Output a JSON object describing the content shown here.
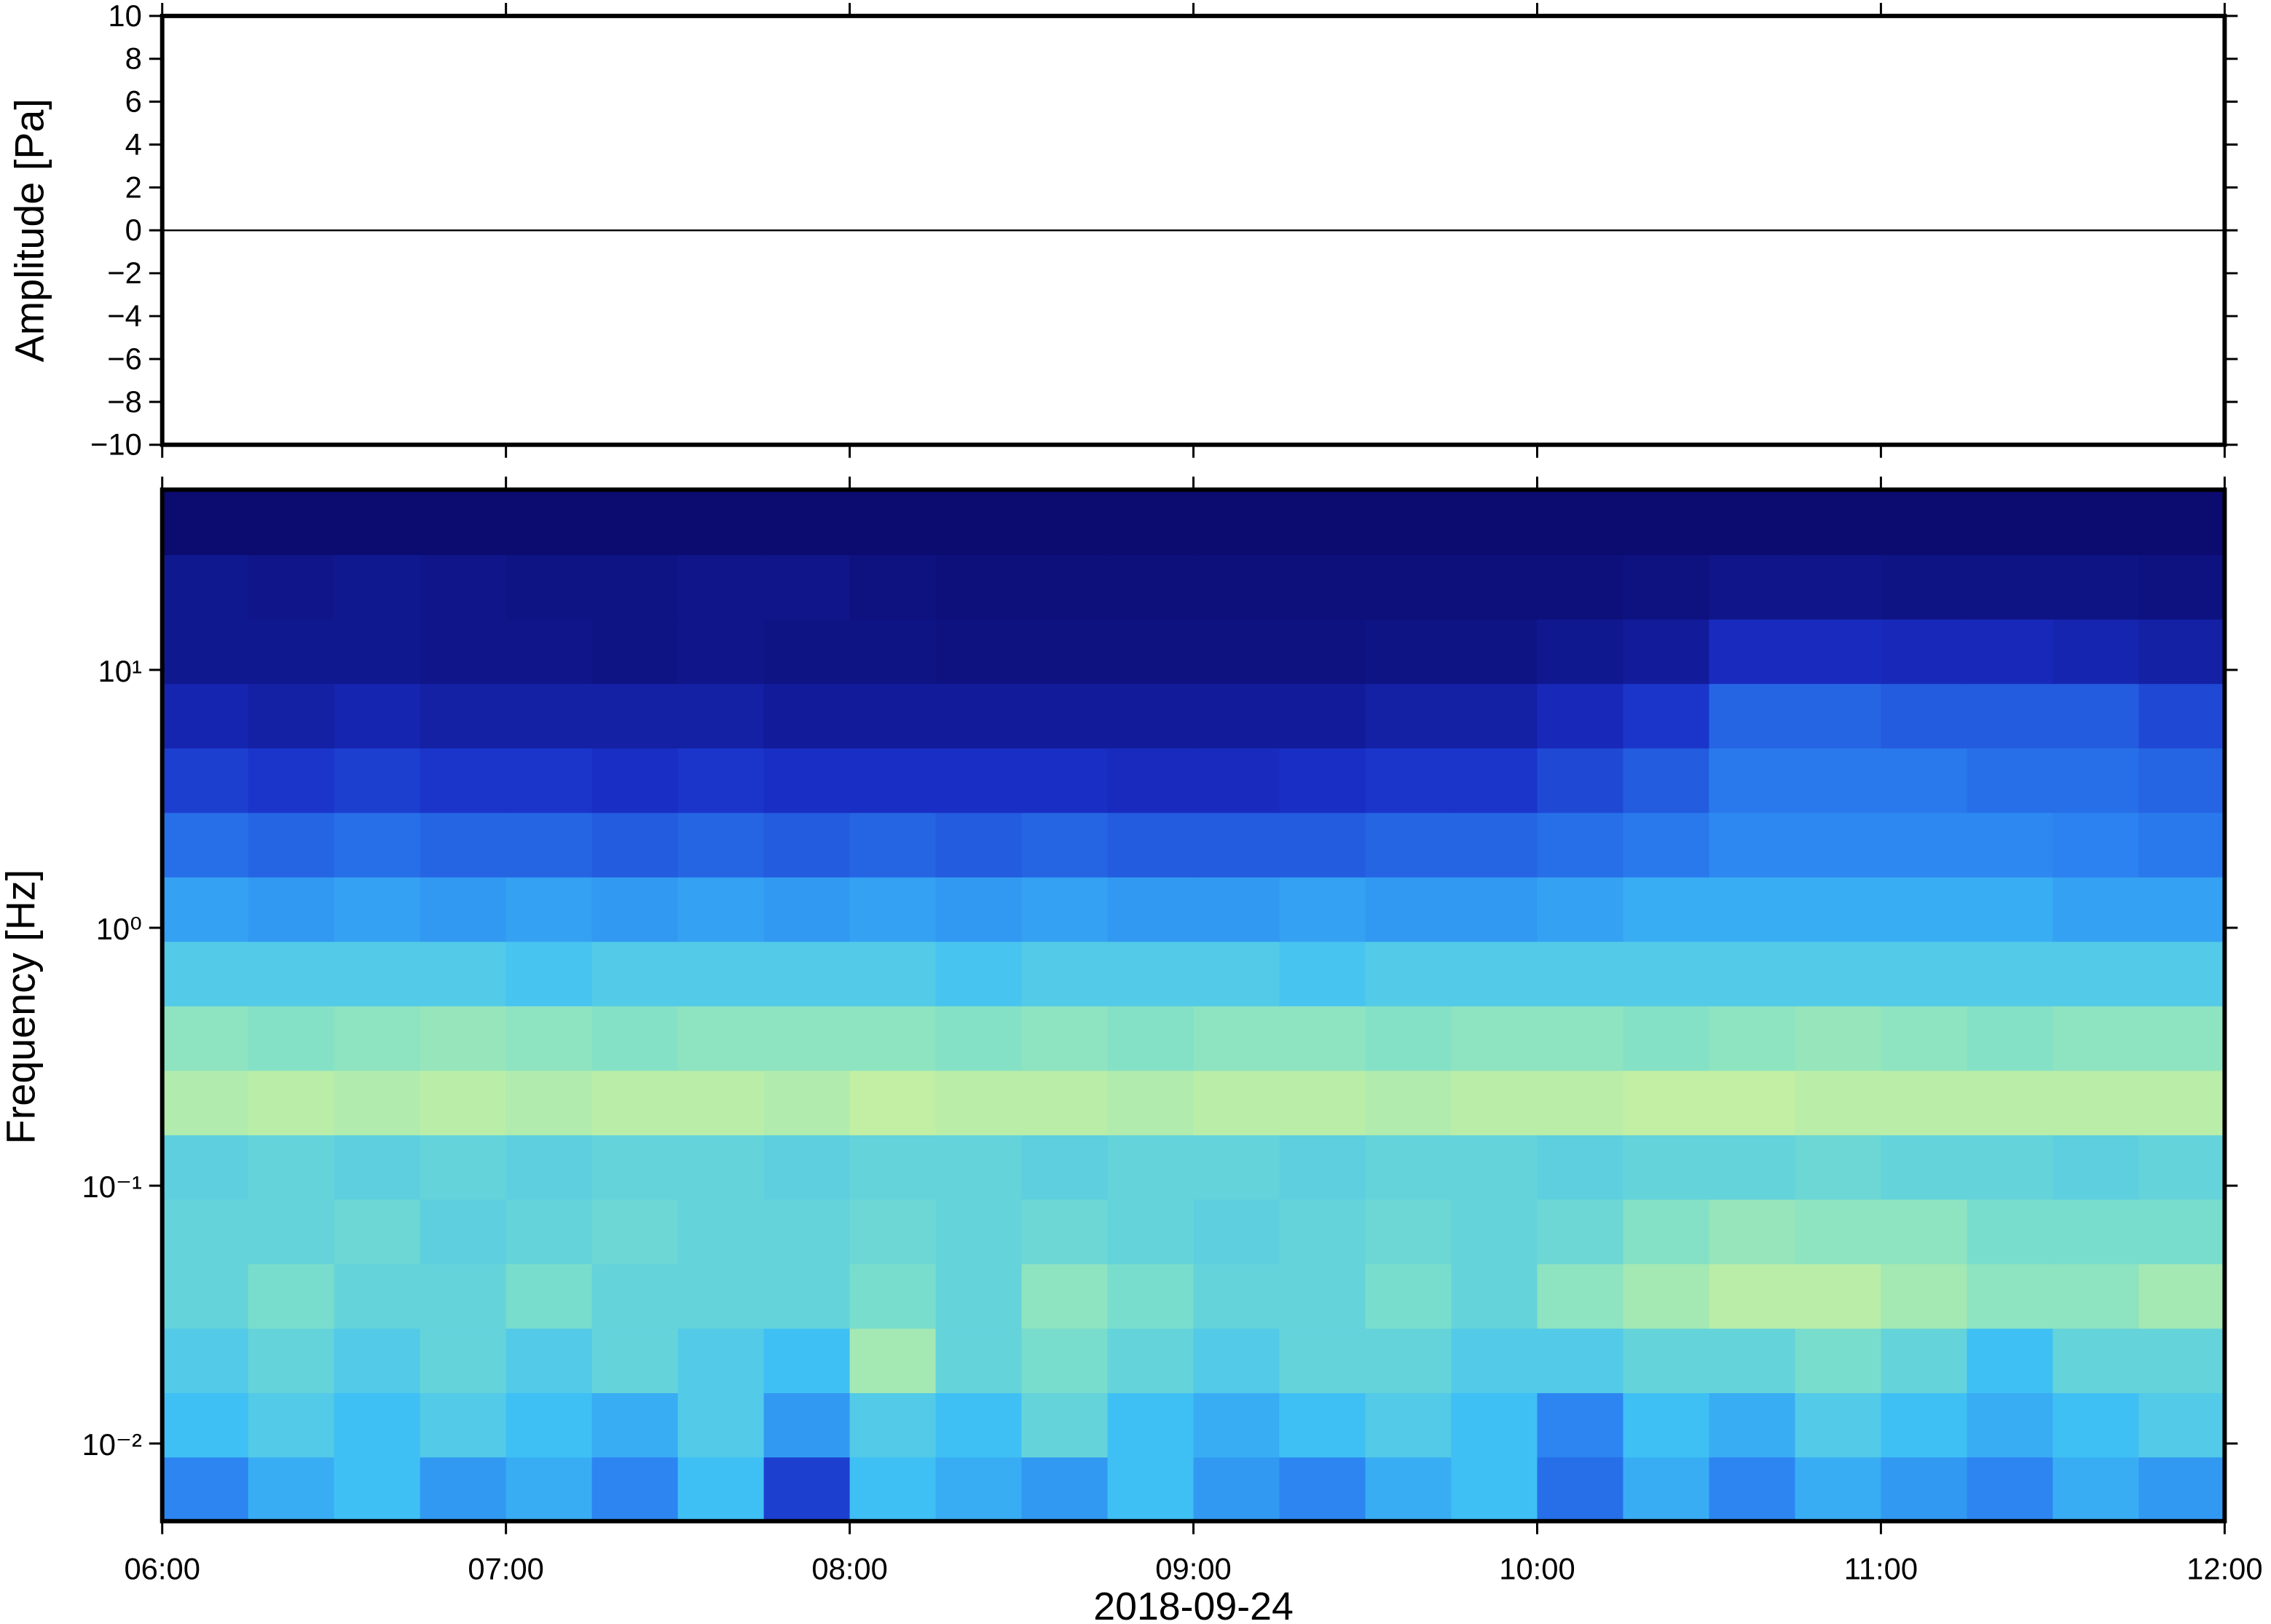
{
  "chart_data": [
    {
      "type": "line",
      "y_label": "Amplitude [Pa]",
      "x": [
        6,
        6.5,
        7,
        7.5,
        8,
        8.5,
        9,
        9.5,
        10,
        10.5,
        11,
        11.5,
        12
      ],
      "series": [
        {
          "color": "#000000",
          "values": [
            0,
            0,
            0,
            0,
            0,
            0,
            0,
            0,
            0,
            0,
            0,
            0,
            0
          ]
        }
      ],
      "xlim": [
        6,
        12
      ],
      "ylim": [
        -10,
        10
      ],
      "yticks": [
        {
          "value": -10,
          "label": "−10"
        },
        {
          "value": -8,
          "label": "−8"
        },
        {
          "value": -6,
          "label": "−6"
        },
        {
          "value": -4,
          "label": "−4"
        },
        {
          "value": -2,
          "label": "−2"
        },
        0,
        2,
        4,
        6,
        8,
        10
      ]
    },
    {
      "type": "heatmap",
      "y_label": "Frequency [Hz]",
      "x_label": "2018-09-24",
      "xlim": [
        6,
        12
      ],
      "ylim": [
        0.005,
        50
      ],
      "log_y": true,
      "xticks": [
        {
          "value": 6,
          "label": "06:00"
        },
        {
          "value": 7,
          "label": "07:00"
        },
        {
          "value": 8,
          "label": "08:00"
        },
        {
          "value": 9,
          "label": "09:00"
        },
        {
          "value": 10,
          "label": "10:00"
        },
        {
          "value": 11,
          "label": "11:00"
        },
        {
          "value": 12,
          "label": "12:00"
        }
      ],
      "yticks": [
        {
          "value": 0.01,
          "label": "10⁻²"
        },
        {
          "value": 0.1,
          "label": "10⁻¹"
        },
        {
          "value": 1,
          "label": "10⁰"
        },
        {
          "value": 10,
          "label": "10¹"
        }
      ],
      "colormap": [
        "#0b0b70",
        "#1a2fc8",
        "#2a7ff0",
        "#3fc0f5",
        "#7fe0c8",
        "#c8f0a0",
        "#f0f08a"
      ],
      "x_bins": [
        6,
        6.25,
        6.5,
        6.75,
        7,
        7.25,
        7.5,
        7.75,
        8,
        8.25,
        8.5,
        8.75,
        9,
        9.25,
        9.5,
        9.75,
        10,
        10.25,
        10.5,
        10.75,
        11,
        11.25,
        11.5,
        11.75,
        12
      ],
      "y_bins": [
        0.005,
        0.0089,
        0.0158,
        0.0281,
        0.05,
        0.0889,
        0.158,
        0.281,
        0.5,
        0.889,
        1.58,
        2.81,
        5,
        8.89,
        15.8,
        28.1,
        50
      ],
      "z": [
        [
          0.35,
          0.45,
          0.5,
          0.4,
          0.45,
          0.35,
          0.5,
          0.2,
          0.5,
          0.45,
          0.4,
          0.5,
          0.4,
          0.35,
          0.45,
          0.5,
          0.3,
          0.45,
          0.35,
          0.45,
          0.4,
          0.35,
          0.45,
          0.4
        ],
        [
          0.5,
          0.55,
          0.5,
          0.55,
          0.5,
          0.45,
          0.55,
          0.4,
          0.55,
          0.5,
          0.6,
          0.5,
          0.45,
          0.5,
          0.55,
          0.5,
          0.35,
          0.5,
          0.45,
          0.55,
          0.5,
          0.45,
          0.5,
          0.55
        ],
        [
          0.55,
          0.6,
          0.55,
          0.6,
          0.55,
          0.6,
          0.55,
          0.5,
          0.75,
          0.6,
          0.65,
          0.6,
          0.55,
          0.6,
          0.6,
          0.55,
          0.55,
          0.6,
          0.6,
          0.65,
          0.6,
          0.5,
          0.6,
          0.6
        ],
        [
          0.6,
          0.65,
          0.6,
          0.6,
          0.65,
          0.6,
          0.6,
          0.6,
          0.65,
          0.6,
          0.7,
          0.65,
          0.6,
          0.6,
          0.65,
          0.6,
          0.7,
          0.75,
          0.8,
          0.8,
          0.75,
          0.7,
          0.7,
          0.75
        ],
        [
          0.6,
          0.6,
          0.62,
          0.58,
          0.6,
          0.62,
          0.6,
          0.6,
          0.62,
          0.6,
          0.62,
          0.6,
          0.58,
          0.6,
          0.62,
          0.6,
          0.62,
          0.68,
          0.72,
          0.7,
          0.7,
          0.65,
          0.65,
          0.65
        ],
        [
          0.58,
          0.6,
          0.58,
          0.6,
          0.58,
          0.6,
          0.6,
          0.58,
          0.6,
          0.6,
          0.58,
          0.6,
          0.6,
          0.58,
          0.6,
          0.6,
          0.58,
          0.6,
          0.6,
          0.62,
          0.6,
          0.6,
          0.58,
          0.6
        ],
        [
          0.78,
          0.8,
          0.78,
          0.8,
          0.78,
          0.8,
          0.8,
          0.78,
          0.82,
          0.8,
          0.8,
          0.78,
          0.8,
          0.8,
          0.78,
          0.8,
          0.8,
          0.82,
          0.82,
          0.8,
          0.8,
          0.8,
          0.8,
          0.8
        ],
        [
          0.7,
          0.68,
          0.7,
          0.72,
          0.7,
          0.68,
          0.7,
          0.7,
          0.7,
          0.68,
          0.7,
          0.68,
          0.7,
          0.7,
          0.68,
          0.7,
          0.7,
          0.68,
          0.7,
          0.72,
          0.7,
          0.68,
          0.7,
          0.7
        ],
        [
          0.55,
          0.55,
          0.55,
          0.55,
          0.52,
          0.55,
          0.55,
          0.55,
          0.55,
          0.52,
          0.55,
          0.55,
          0.55,
          0.52,
          0.55,
          0.55,
          0.55,
          0.55,
          0.55,
          0.55,
          0.55,
          0.55,
          0.55,
          0.55
        ],
        [
          0.42,
          0.4,
          0.42,
          0.4,
          0.42,
          0.4,
          0.42,
          0.4,
          0.42,
          0.4,
          0.42,
          0.4,
          0.4,
          0.42,
          0.4,
          0.4,
          0.42,
          0.45,
          0.45,
          0.45,
          0.45,
          0.45,
          0.42,
          0.42
        ],
        [
          0.3,
          0.28,
          0.3,
          0.28,
          0.28,
          0.26,
          0.28,
          0.26,
          0.28,
          0.26,
          0.28,
          0.26,
          0.26,
          0.26,
          0.28,
          0.28,
          0.3,
          0.32,
          0.36,
          0.36,
          0.36,
          0.36,
          0.34,
          0.32
        ],
        [
          0.2,
          0.18,
          0.2,
          0.18,
          0.18,
          0.16,
          0.18,
          0.16,
          0.16,
          0.16,
          0.16,
          0.15,
          0.15,
          0.16,
          0.18,
          0.18,
          0.22,
          0.26,
          0.32,
          0.32,
          0.32,
          0.3,
          0.3,
          0.28
        ],
        [
          0.12,
          0.1,
          0.12,
          0.1,
          0.1,
          0.1,
          0.1,
          0.08,
          0.08,
          0.08,
          0.08,
          0.08,
          0.08,
          0.08,
          0.1,
          0.1,
          0.14,
          0.18,
          0.28,
          0.28,
          0.26,
          0.26,
          0.26,
          0.22
        ],
        [
          0.06,
          0.06,
          0.06,
          0.05,
          0.05,
          0.04,
          0.05,
          0.04,
          0.04,
          0.03,
          0.03,
          0.03,
          0.03,
          0.03,
          0.04,
          0.04,
          0.06,
          0.08,
          0.15,
          0.15,
          0.14,
          0.14,
          0.12,
          0.1
        ],
        [
          0.06,
          0.05,
          0.06,
          0.05,
          0.04,
          0.04,
          0.05,
          0.05,
          0.03,
          0.02,
          0.02,
          0.02,
          0.02,
          0.02,
          0.02,
          0.02,
          0.02,
          0.03,
          0.05,
          0.05,
          0.04,
          0.04,
          0.04,
          0.03
        ],
        [
          0,
          0,
          0,
          0,
          0,
          0,
          0,
          0,
          0,
          0,
          0,
          0,
          0,
          0,
          0,
          0,
          0,
          0,
          0,
          0,
          0,
          0,
          0,
          0
        ]
      ]
    }
  ]
}
